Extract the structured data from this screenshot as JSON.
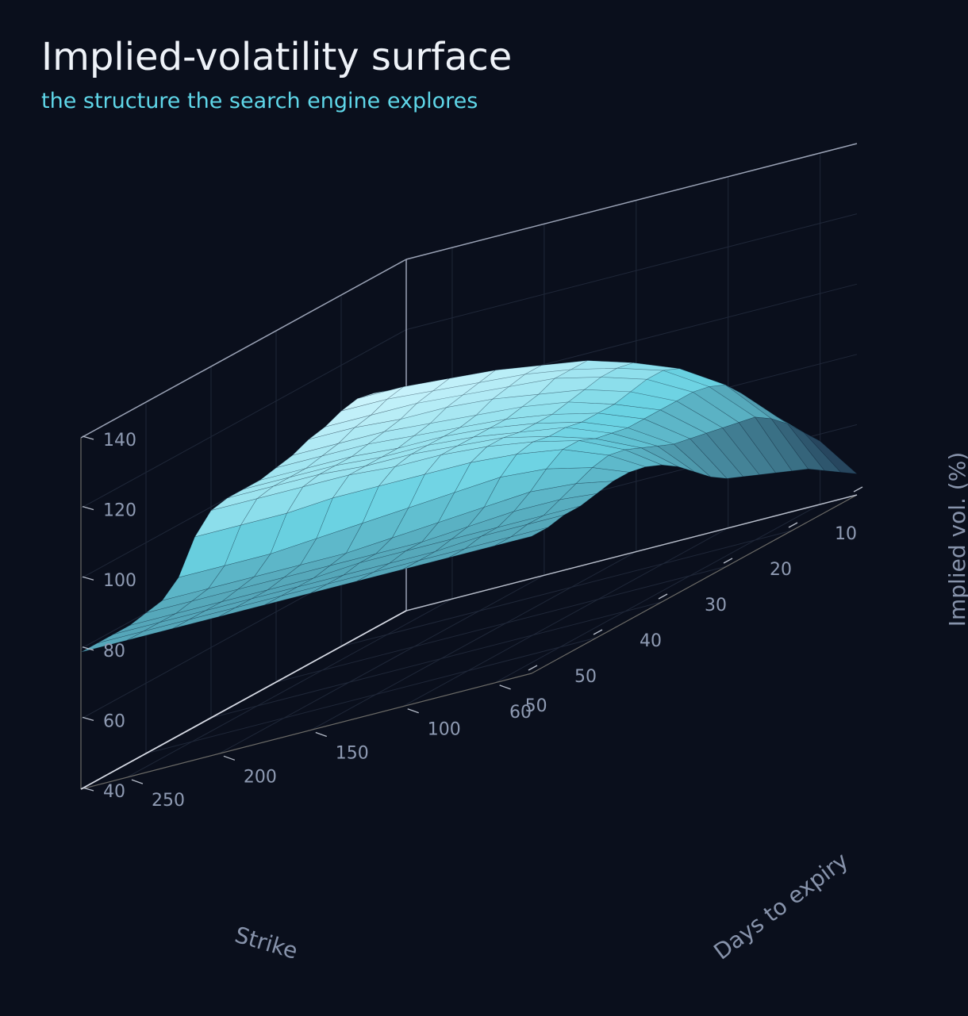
{
  "colors": {
    "background": "#0a0f1c",
    "title": "#eef2f8",
    "subtitle": "#5fd6e8",
    "surface_high": "#d8f8ff",
    "surface_mid": "#6ad2e2",
    "surface_low": "#16243e",
    "grid": "#1f2738",
    "pane_edge": "#9aa2b5",
    "tick_text": "#8f9bb3"
  },
  "chart_data": {
    "type": "surface",
    "title": "Implied-volatility surface",
    "subtitle": "the structure the search engine explores",
    "xlabel": "Strike",
    "ylabel": "Days to expiry",
    "zlabel": "Implied vol. (%)",
    "xlim": [
      10,
      60
    ],
    "ylim": [
      30,
      275
    ],
    "zlim": [
      40,
      140
    ],
    "x_ticks": [
      10,
      20,
      30,
      40,
      50,
      60
    ],
    "y_ticks": [
      50,
      100,
      150,
      200,
      250
    ],
    "z_ticks": [
      40,
      60,
      80,
      100,
      120,
      140
    ],
    "grid": true,
    "colormap": "dark-navy-to-cyan-to-white",
    "strikes": [
      10,
      12.5,
      15,
      17.5,
      20,
      22.5,
      25,
      27.5,
      30,
      32.5,
      35,
      37.5,
      40,
      42.5,
      45,
      47.5,
      50,
      52.5,
      55,
      57.5,
      60
    ],
    "days_to_expiry": [
      30,
      50,
      75,
      100,
      125,
      150,
      175,
      200,
      225,
      250,
      275
    ],
    "implied_vol": [
      [
        46,
        58,
        68,
        74,
        79,
        83,
        86,
        88,
        90,
        91,
        92
      ],
      [
        49,
        63,
        74,
        81,
        86,
        90,
        93,
        96,
        98,
        99,
        100
      ],
      [
        52,
        68,
        80,
        88,
        94,
        98,
        101,
        103,
        105,
        106,
        107
      ],
      [
        55,
        72,
        85,
        93,
        98,
        102,
        104,
        106,
        107,
        108,
        108
      ],
      [
        57,
        75,
        87,
        95,
        99,
        102,
        104,
        105,
        106,
        107,
        107
      ],
      [
        59,
        76,
        88,
        95,
        99,
        102,
        103,
        104,
        105,
        105,
        105
      ],
      [
        61,
        77,
        88,
        94,
        98,
        100,
        102,
        103,
        103,
        104,
        104
      ],
      [
        63,
        78,
        88,
        93,
        97,
        99,
        100,
        101,
        102,
        102,
        102
      ],
      [
        65,
        79,
        88,
        93,
        96,
        98,
        99,
        100,
        101,
        101,
        101
      ],
      [
        68,
        80,
        88,
        93,
        96,
        98,
        99,
        99,
        100,
        100,
        100
      ],
      [
        72,
        82,
        89,
        94,
        96,
        98,
        99,
        99,
        100,
        100,
        100
      ],
      [
        76,
        84,
        90,
        94,
        97,
        98,
        99,
        99,
        100,
        100,
        100
      ],
      [
        79,
        86,
        92,
        95,
        97,
        98,
        98,
        99,
        99,
        99,
        99
      ],
      [
        81,
        87,
        92,
        94,
        95,
        95,
        95,
        95,
        94,
        94,
        94
      ],
      [
        82,
        86,
        89,
        90,
        89,
        88,
        87,
        86,
        85,
        85,
        85
      ],
      [
        82,
        84,
        85,
        84,
        83,
        82,
        81,
        81,
        81,
        81,
        81
      ],
      [
        81,
        82,
        82,
        81,
        80,
        80,
        80,
        80,
        80,
        80,
        80
      ],
      [
        80,
        80,
        80,
        80,
        80,
        80,
        79,
        79,
        79,
        79,
        79
      ],
      [
        80,
        80,
        80,
        79,
        79,
        79,
        79,
        79,
        79,
        79,
        79
      ],
      [
        79,
        79,
        79,
        79,
        79,
        79,
        79,
        79,
        79,
        79,
        79
      ],
      [
        79,
        79,
        79,
        79,
        79,
        79,
        79,
        79,
        79,
        79,
        79
      ]
    ]
  }
}
